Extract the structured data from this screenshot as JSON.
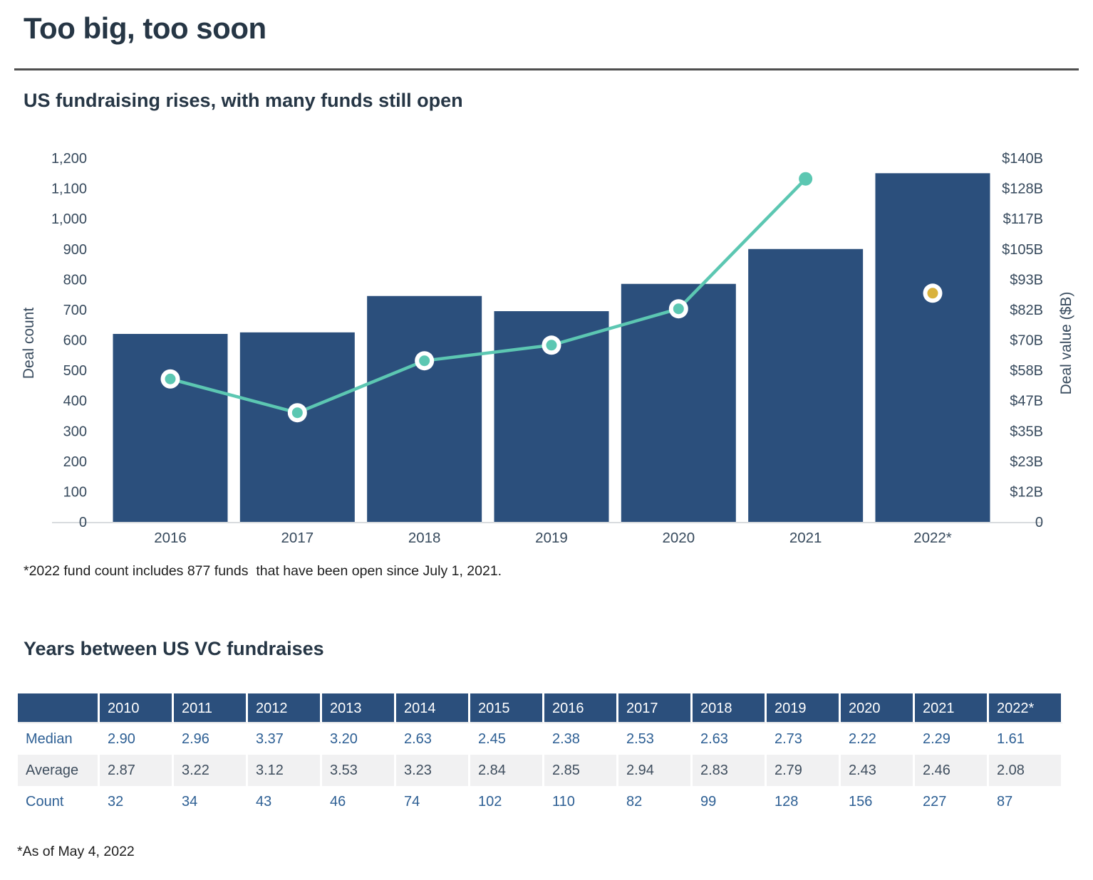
{
  "page": {
    "title": "Too big, too soon",
    "chart_footnote": "*2022 fund count includes 877 funds  that have been open since July 1, 2021.",
    "table_footnote": "*As of May 4, 2022"
  },
  "chart": {
    "subtitle": "US fundraising rises, with many funds still open"
  },
  "chart_data": {
    "type": "bar+line",
    "title": "US fundraising rises, with many funds still open",
    "categories": [
      "2016",
      "2017",
      "2018",
      "2019",
      "2020",
      "2021",
      "2022*"
    ],
    "series": [
      {
        "name": "Fund count",
        "type": "bar",
        "axis": "left",
        "color": "#2b4f7c",
        "values": [
          620,
          625,
          745,
          695,
          785,
          900,
          1150
        ]
      },
      {
        "name": "Deal value ($B)",
        "type": "line",
        "axis": "right",
        "color": "#5cc7b2",
        "marker_ring_color": "#ffffff",
        "values": [
          55,
          42,
          62,
          68,
          82,
          132,
          88
        ],
        "line_connected_through": "2021",
        "isolated_last_point_color": "#d9b23c"
      }
    ],
    "left_axis": {
      "label": "Deal count",
      "min": 0,
      "max": 1200,
      "tick_step": 100,
      "tick_labels_top_to_bottom": [
        "1,200",
        "1,100",
        "1,000",
        "900",
        "800",
        "700",
        "600",
        "500",
        "400",
        "300",
        "200",
        "100",
        "0"
      ]
    },
    "right_axis": {
      "label": "Deal value ($B)",
      "min": 0,
      "max": 140,
      "tick_labels_top_to_bottom": [
        "$140B",
        "$128B",
        "$117B",
        "$105B",
        "$93B",
        "$82B",
        "$70B",
        "$58B",
        "$47B",
        "$35B",
        "$23B",
        "$12B",
        "0"
      ]
    },
    "grid": false,
    "legend": false,
    "baseline_color": "#d8dbde",
    "tick_text_color": "#36495c"
  },
  "table": {
    "title": "Years between US VC fundraises",
    "header_bg": "#2b4f7c",
    "header_text_color": "#ffffff",
    "columns": [
      "2010",
      "2011",
      "2012",
      "2013",
      "2014",
      "2015",
      "2016",
      "2017",
      "2018",
      "2019",
      "2020",
      "2021",
      "2022*"
    ],
    "rows": [
      {
        "label": "Median",
        "text_color": "#2d5f94",
        "row_bg": "#ffffff",
        "values": [
          "2.90",
          "2.96",
          "3.37",
          "3.20",
          "2.63",
          "2.45",
          "2.38",
          "2.53",
          "2.63",
          "2.73",
          "2.22",
          "2.29",
          "1.61"
        ]
      },
      {
        "label": "Average",
        "text_color": "#3f4e5e",
        "row_bg": "#f1f1f2",
        "values": [
          "2.87",
          "3.22",
          "3.12",
          "3.53",
          "3.23",
          "2.84",
          "2.85",
          "2.94",
          "2.83",
          "2.79",
          "2.43",
          "2.46",
          "2.08"
        ]
      },
      {
        "label": "Count",
        "text_color": "#2d5f94",
        "row_bg": "#ffffff",
        "values": [
          "32",
          "34",
          "43",
          "46",
          "74",
          "102",
          "110",
          "82",
          "99",
          "128",
          "156",
          "227",
          "87"
        ]
      }
    ]
  }
}
